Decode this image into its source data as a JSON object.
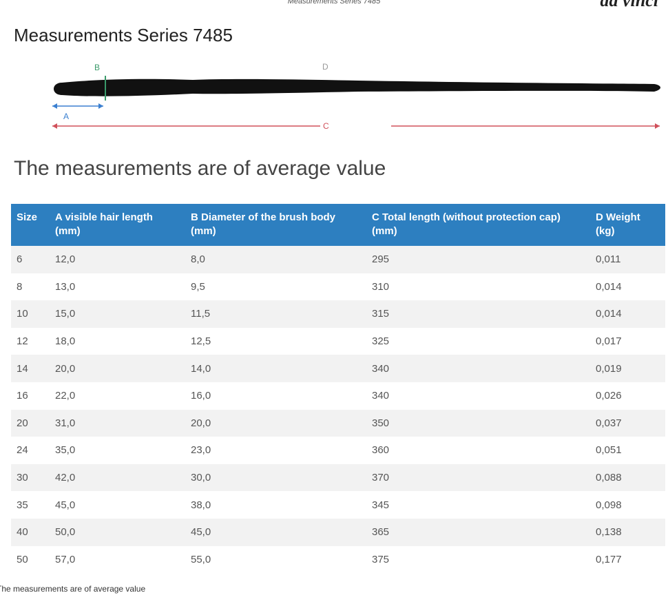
{
  "header": {
    "caption": "Measurements Series 7485",
    "logo": "da vinci"
  },
  "title": "Measurements Series 7485",
  "diagram": {
    "labels": [
      "A",
      "B",
      "C",
      "D"
    ]
  },
  "subtitle": "The measurements are of average value",
  "table": {
    "columns": [
      "Size",
      "A visible hair length (mm)",
      "B Diameter of the brush body (mm)",
      "C Total length (without protection cap) (mm)",
      "D Weight (kg)"
    ],
    "rows": [
      [
        "6",
        "12,0",
        "8,0",
        "295",
        "0,011"
      ],
      [
        "8",
        "13,0",
        "9,5",
        "310",
        "0,014"
      ],
      [
        "10",
        "15,0",
        "11,5",
        "315",
        "0,014"
      ],
      [
        "12",
        "18,0",
        "12,5",
        "325",
        "0,017"
      ],
      [
        "14",
        "20,0",
        "14,0",
        "340",
        "0,019"
      ],
      [
        "16",
        "22,0",
        "16,0",
        "340",
        "0,026"
      ],
      [
        "20",
        "31,0",
        "20,0",
        "350",
        "0,037"
      ],
      [
        "24",
        "35,0",
        "23,0",
        "360",
        "0,051"
      ],
      [
        "30",
        "42,0",
        "30,0",
        "370",
        "0,088"
      ],
      [
        "35",
        "45,0",
        "38,0",
        "345",
        "0,098"
      ],
      [
        "40",
        "50,0",
        "45,0",
        "365",
        "0,138"
      ],
      [
        "50",
        "57,0",
        "55,0",
        "375",
        "0,177"
      ]
    ]
  },
  "footnote": "The measurements are of average value"
}
